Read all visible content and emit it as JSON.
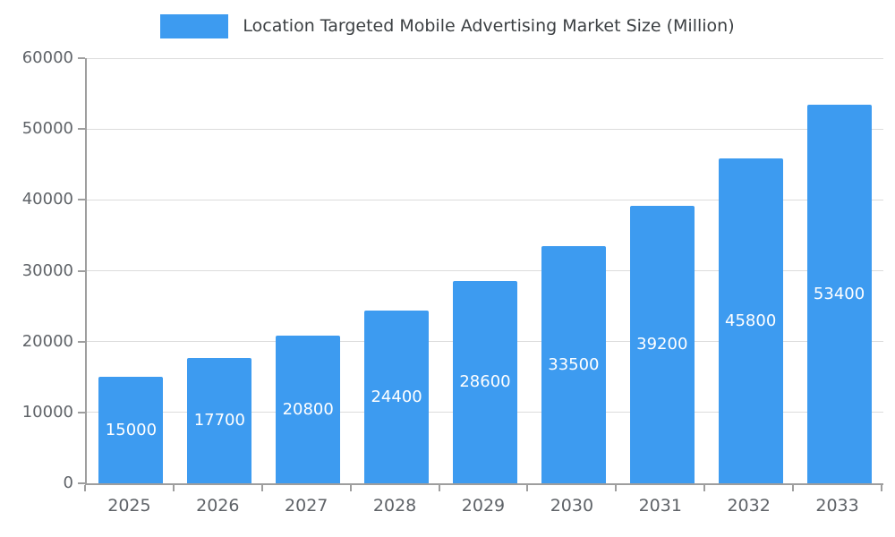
{
  "chart_data": {
    "type": "bar",
    "title": "Location Targeted Mobile Advertising Market Size (Million)",
    "categories": [
      "2025",
      "2026",
      "2027",
      "2028",
      "2029",
      "2030",
      "2031",
      "2032",
      "2033"
    ],
    "values": [
      15000,
      17700,
      20800,
      24400,
      28600,
      33500,
      39200,
      45800,
      53400
    ],
    "xlabel": "",
    "ylabel": "",
    "ylim": [
      0,
      60000
    ],
    "yticks": [
      0,
      10000,
      20000,
      30000,
      40000,
      50000,
      60000
    ],
    "grid": true,
    "legend_position": "top",
    "bar_color": "#3d9bf0",
    "value_label_color": "#ffffff",
    "axis_color": "#9e9e9e",
    "gridline_color": "#dcdcdc",
    "tick_label_color": "#5f6368"
  }
}
